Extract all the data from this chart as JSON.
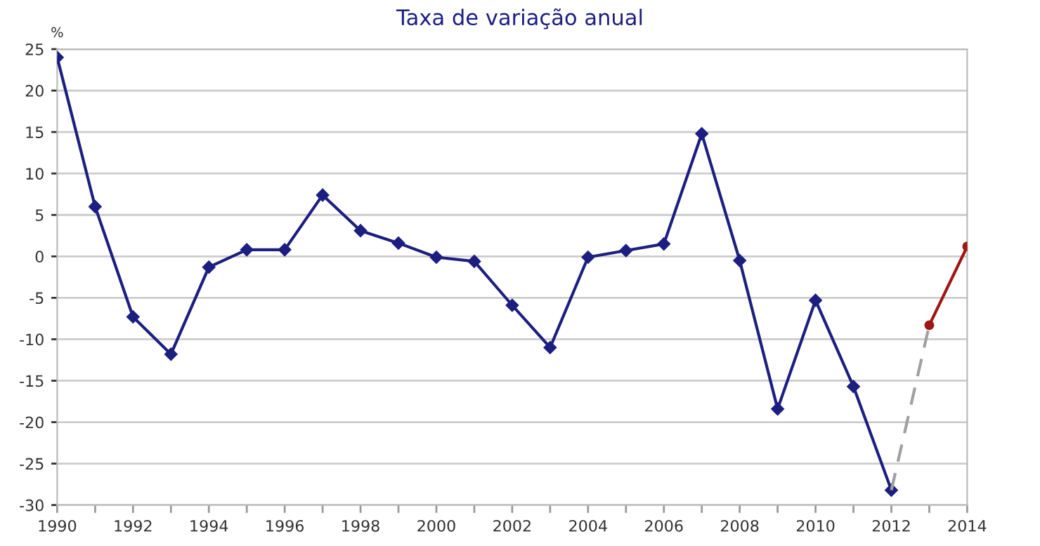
{
  "chart_data": {
    "type": "line",
    "title": "Taxa de variação anual",
    "ylabel": "%",
    "xlim": [
      1990,
      2014
    ],
    "ylim": [
      -30,
      25
    ],
    "xticks": [
      1990,
      {
        "value": 1991,
        "label": null
      },
      1992,
      {
        "value": 1993,
        "label": null
      },
      1994,
      {
        "value": 1995,
        "label": null
      },
      1996,
      {
        "value": 1997,
        "label": null
      },
      1998,
      {
        "value": 1999,
        "label": null
      },
      2000,
      {
        "value": 2001,
        "label": null
      },
      2002,
      {
        "value": 2003,
        "label": null
      },
      2004,
      {
        "value": 2005,
        "label": null
      },
      2006,
      {
        "value": 2007,
        "label": null
      },
      2008,
      {
        "value": 2009,
        "label": null
      },
      2010,
      {
        "value": 2011,
        "label": null
      },
      2012,
      {
        "value": 2013,
        "label": null
      },
      2014
    ],
    "yticks": [
      -30,
      -25,
      -20,
      -15,
      -10,
      -5,
      0,
      5,
      10,
      15,
      20,
      25
    ],
    "grid": "y",
    "legend": false,
    "series": [
      {
        "color": "#1c1f80",
        "marker": "diamond",
        "line_style": "solid",
        "x": [
          1990,
          1991,
          1992,
          1993,
          1994,
          1995,
          1996,
          1997,
          1998,
          1999,
          2000,
          2001,
          2002,
          2003,
          2004,
          2005,
          2006,
          2007,
          2008,
          2009,
          2010,
          2011,
          2012
        ],
        "values": [
          24,
          6,
          -7.3,
          -11.8,
          -1.3,
          0.8,
          0.8,
          7.4,
          3.1,
          1.6,
          -0.1,
          -0.6,
          -5.9,
          -11.0,
          -0.1,
          0.7,
          1.5,
          14.8,
          -0.5,
          -18.4,
          -5.3,
          -15.7,
          -28.2
        ]
      },
      {
        "color": "#a0a0a0",
        "marker": "none",
        "line_style": "dashed",
        "x": [
          2012,
          2013
        ],
        "values": [
          -28.2,
          -8.3
        ]
      },
      {
        "color": "#a01515",
        "marker": "circle",
        "line_style": "solid",
        "x": [
          2013,
          2014
        ],
        "values": [
          -8.3,
          1.2
        ]
      }
    ]
  }
}
